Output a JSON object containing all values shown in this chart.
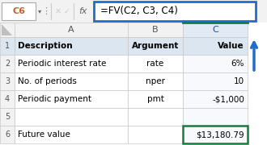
{
  "formula_bar_cell": "C6",
  "formula_bar_formula": "=FV(C2, C3, C4)",
  "col_headers": [
    "A",
    "B",
    "C"
  ],
  "rows": [
    {
      "row": "1",
      "A": "Description",
      "B": "Argument",
      "C": "Value",
      "bold": true
    },
    {
      "row": "2",
      "A": "Periodic interest rate",
      "B": "rate",
      "C": "6%",
      "bold": false
    },
    {
      "row": "3",
      "A": "No. of periods",
      "B": "nper",
      "C": "10",
      "bold": false
    },
    {
      "row": "4",
      "A": "Periodic payment",
      "B": "pmt",
      "C": "-$1,000",
      "bold": false
    },
    {
      "row": "5",
      "A": "",
      "B": "",
      "C": "",
      "bold": false
    },
    {
      "row": "6",
      "A": "Future value",
      "B": "",
      "C": "$13,180.79",
      "bold": false
    }
  ],
  "formula_bar_bg": "#f2f2f2",
  "cell_ref_border": "#aaaaaa",
  "formula_box_border": "#1e6ec8",
  "formula_box_bg": "#ffffff",
  "row1_bg": "#dce6f1",
  "col_c_header_bg": "#e2eaf5",
  "col_c_header_border_top": "#1a7a3c",
  "col_ab_header_bg": "#f2f2f2",
  "grid_color": "#c8c8c8",
  "c6_border": "#1a7a3c",
  "arrow_color": "#1e6ec8",
  "cell_bg_white": "#ffffff",
  "cell_bg_col_c": "#f8f9fd",
  "rn_header_bg": "#f2f2f2"
}
